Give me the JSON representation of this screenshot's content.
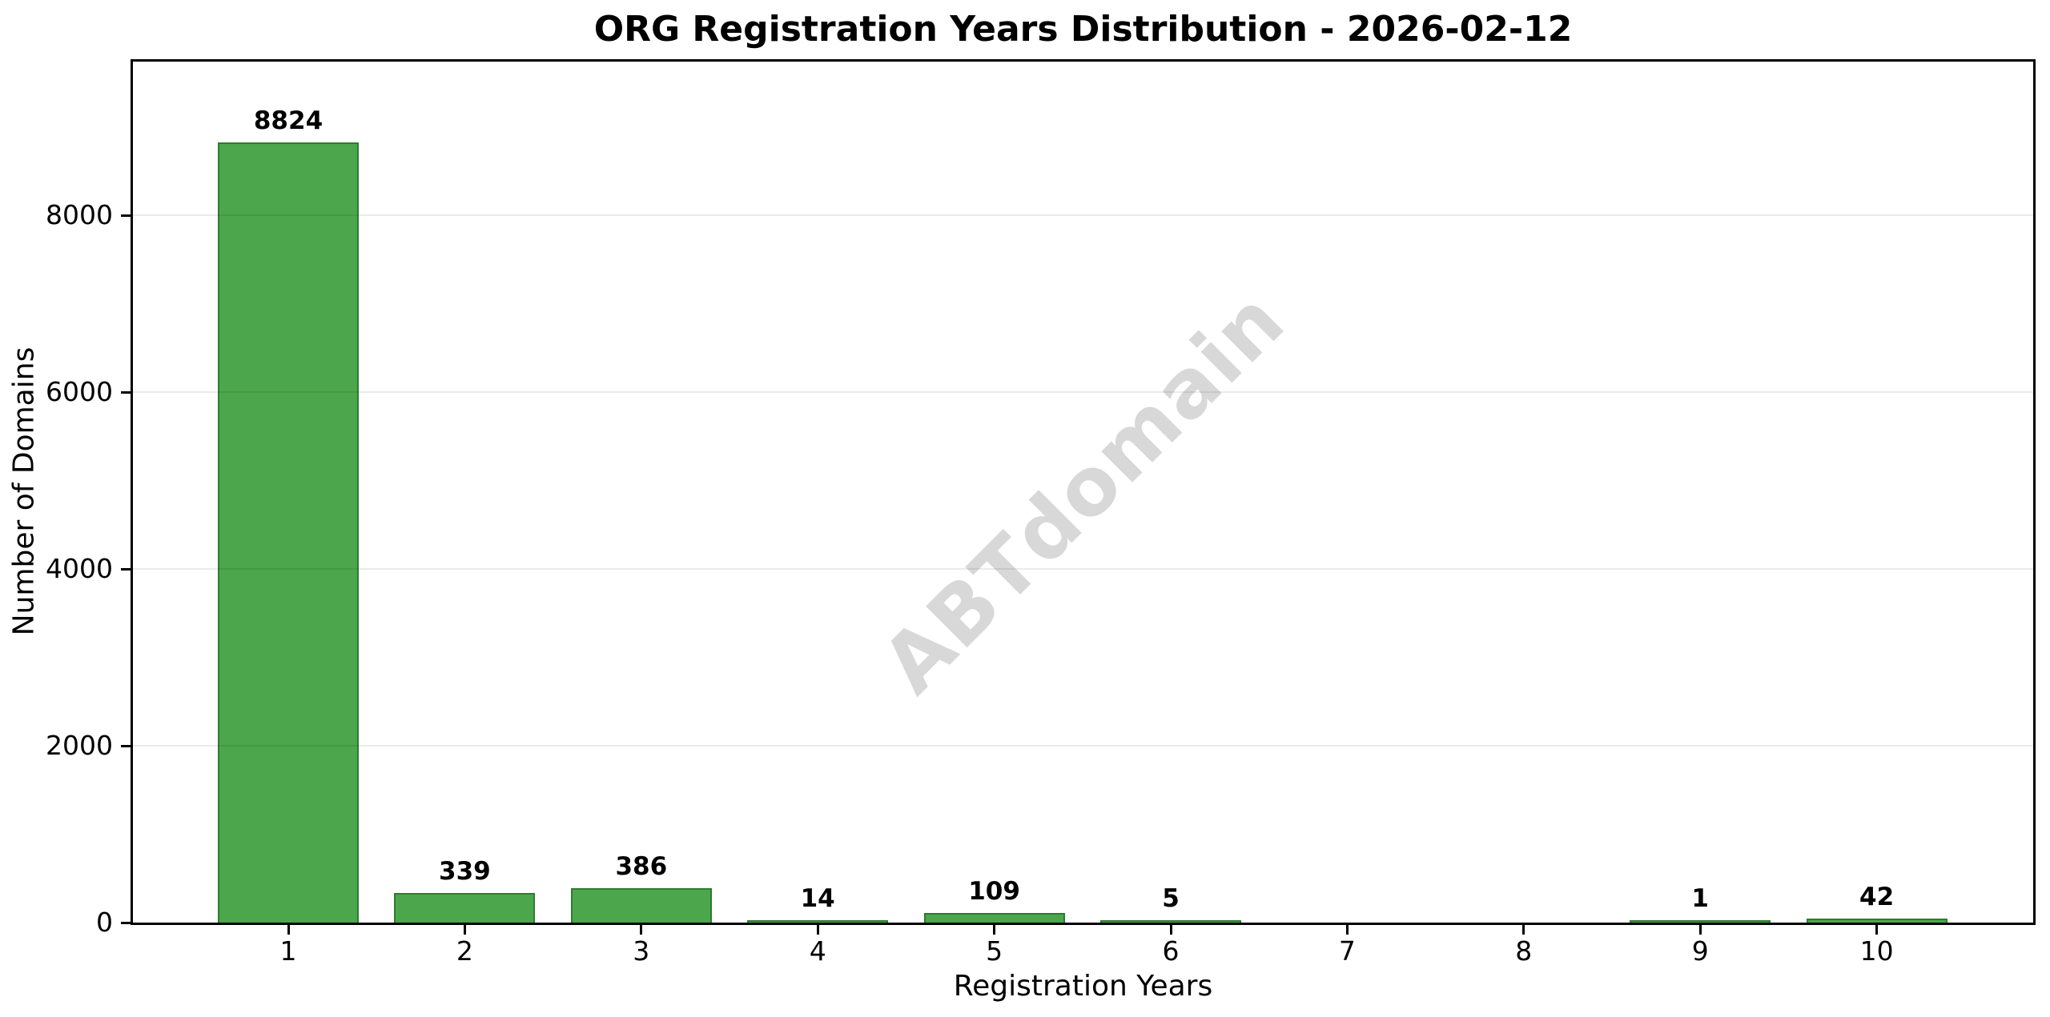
{
  "chart_data": {
    "type": "bar",
    "title": "ORG Registration Years Distribution - 2026-02-12",
    "xlabel": "Registration Years",
    "ylabel": "Number of Domains",
    "watermark": "ABTdomain",
    "categories": [
      "1",
      "2",
      "3",
      "4",
      "5",
      "6",
      "7",
      "8",
      "9",
      "10"
    ],
    "values": [
      8824,
      339,
      386,
      14,
      109,
      5,
      0,
      0,
      1,
      42
    ],
    "bar_labels": [
      "8824",
      "339",
      "386",
      "14",
      "109",
      "5",
      "",
      "",
      "1",
      "42"
    ],
    "yticks": [
      0,
      2000,
      4000,
      6000,
      8000
    ],
    "ylim": [
      0,
      9740
    ],
    "grid": "horizontal-light",
    "legend_position": "none",
    "colors": {
      "bar_fill": "#4ca64c",
      "bar_edge": "#2e7b31",
      "grid": "#ebebeb",
      "axis": "#000000",
      "watermark": "#d8d8d8",
      "background": "#ffffff"
    }
  }
}
